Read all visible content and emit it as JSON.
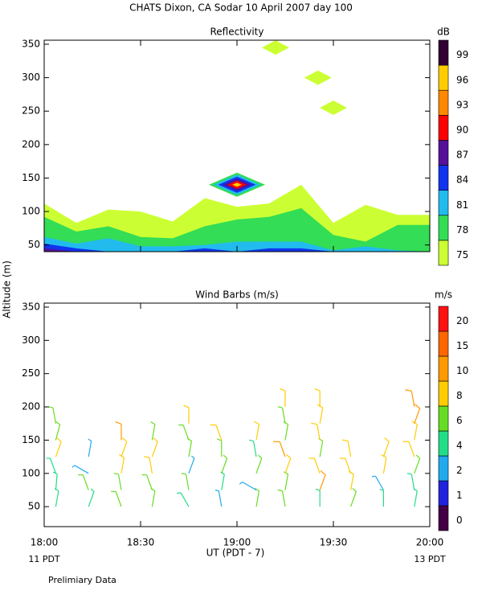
{
  "title": "CHATS Dixon, CA  Sodar  10 April 2007  day 100",
  "y_label": "Altitude (m)",
  "x_label": "UT  (PDT - 7)",
  "x_left_note": "11 PDT",
  "x_right_note": "13 PDT",
  "footnote": "Prelimiary Data",
  "chart_data": [
    {
      "type": "contour",
      "title": "Reflectivity",
      "xlim": [
        18,
        20
      ],
      "xticks": [
        18,
        18.5,
        19,
        19.5,
        20
      ],
      "ylim": [
        40,
        356
      ],
      "yticks": [
        50,
        100,
        150,
        200,
        250,
        300,
        350
      ],
      "x": [
        18,
        18.1667,
        18.3333,
        18.5,
        18.6667,
        18.8333,
        19,
        19.1667,
        19.3333,
        19.5,
        19.6667,
        19.8333,
        20
      ],
      "series": [
        {
          "color": "#ccff33",
          "values": [
            112,
            83,
            103,
            100,
            85,
            120,
            107,
            112,
            140,
            83,
            110,
            95,
            95
          ]
        },
        {
          "color": "#33dd55",
          "values": [
            92,
            70,
            78,
            62,
            60,
            78,
            88,
            92,
            105,
            65,
            55,
            80,
            80
          ]
        },
        {
          "color": "#22bbee",
          "values": [
            62,
            52,
            60,
            48,
            48,
            50,
            55,
            55,
            55,
            42,
            48,
            42,
            40
          ]
        },
        {
          "color": "#1133ee",
          "values": [
            52,
            45,
            40,
            40,
            40,
            45,
            40,
            45,
            45,
            40,
            40,
            40,
            40
          ]
        },
        {
          "color": "#551199",
          "values": [
            45,
            40,
            40,
            40,
            40,
            40,
            40,
            40,
            40,
            40,
            40,
            40,
            40
          ]
        }
      ],
      "spots": [
        {
          "x": 19,
          "y": 140,
          "colors": [
            "#33dd55",
            "#22bbee",
            "#1133ee",
            "#551199",
            "#ff0000",
            "#ffcc00"
          ]
        },
        {
          "x": 19.2,
          "y": 345,
          "colors": [
            "#ccff33"
          ]
        },
        {
          "x": 19.42,
          "y": 300,
          "colors": [
            "#ccff33"
          ]
        },
        {
          "x": 19.5,
          "y": 255,
          "colors": [
            "#ccff33"
          ]
        }
      ],
      "colorbar": {
        "label": "dB",
        "ticks": [
          75,
          78,
          81,
          84,
          87,
          90,
          93,
          96,
          99
        ],
        "colors": [
          "#ccff33",
          "#33dd55",
          "#22bbee",
          "#1133ee",
          "#551199",
          "#ff0000",
          "#ff8800",
          "#ffcc00",
          "#330033"
        ]
      }
    },
    {
      "type": "barbs",
      "title": "Wind Barbs (m/s)",
      "xlim": [
        18,
        20
      ],
      "xticks": [
        {
          "value": 18,
          "label": "18:00"
        },
        {
          "value": 18.5,
          "label": "18:30"
        },
        {
          "value": 19,
          "label": "19:00"
        },
        {
          "value": 19.5,
          "label": "19:30"
        },
        {
          "value": 20,
          "label": "20:00"
        }
      ],
      "ylim": [
        20,
        356
      ],
      "yticks": [
        50,
        100,
        150,
        200,
        250,
        300,
        350
      ],
      "barbs": {
        "x": [
          18.06,
          18.06,
          18.06,
          18.06,
          18.06,
          18.06,
          18.23,
          18.23,
          18.23,
          18.23,
          18.4,
          18.4,
          18.4,
          18.4,
          18.4,
          18.56,
          18.56,
          18.56,
          18.56,
          18.56,
          18.75,
          18.75,
          18.75,
          18.75,
          18.75,
          18.75,
          18.92,
          18.92,
          18.92,
          18.92,
          18.92,
          19.1,
          19.1,
          19.1,
          19.1,
          19.1,
          19.25,
          19.25,
          19.25,
          19.25,
          19.25,
          19.25,
          19.25,
          19.43,
          19.43,
          19.43,
          19.43,
          19.43,
          19.43,
          19.43,
          19.59,
          19.59,
          19.59,
          19.59,
          19.76,
          19.76,
          19.76,
          19.76,
          19.92,
          19.92,
          19.92,
          19.92,
          19.92,
          19.92,
          19.92
        ],
        "y": [
          50,
          75,
          100,
          125,
          150,
          175,
          50,
          75,
          100,
          125,
          50,
          75,
          100,
          125,
          150,
          50,
          75,
          100,
          125,
          150,
          50,
          75,
          100,
          125,
          150,
          175,
          50,
          75,
          100,
          125,
          150,
          50,
          75,
          100,
          125,
          150,
          50,
          75,
          100,
          125,
          150,
          175,
          200,
          50,
          75,
          100,
          125,
          150,
          175,
          200,
          50,
          75,
          100,
          125,
          50,
          75,
          100,
          125,
          50,
          75,
          100,
          125,
          150,
          175,
          200
        ],
        "speed": [
          5,
          5,
          4,
          8,
          6,
          6,
          4,
          6,
          2,
          3,
          6,
          6,
          8,
          8,
          10,
          6,
          6,
          8,
          8,
          6,
          4,
          6,
          3,
          6,
          6,
          8,
          3,
          5,
          6,
          6,
          9,
          6,
          3,
          6,
          5,
          8,
          6,
          6,
          8,
          10,
          7,
          6,
          8,
          5,
          10,
          8,
          6,
          9,
          9,
          8,
          6,
          8,
          8,
          8,
          4,
          3,
          8,
          9,
          4,
          5,
          6,
          9,
          9,
          12,
          10
        ],
        "direction": [
          10,
          5,
          340,
          20,
          15,
          350,
          20,
          340,
          300,
          10,
          340,
          350,
          10,
          20,
          0,
          10,
          340,
          350,
          20,
          10,
          330,
          350,
          20,
          10,
          340,
          0,
          350,
          10,
          20,
          0,
          340,
          10,
          300,
          20,
          350,
          10,
          350,
          10,
          20,
          340,
          10,
          350,
          0,
          0,
          20,
          340,
          10,
          350,
          10,
          0,
          20,
          10,
          340,
          350,
          0,
          330,
          10,
          20,
          10,
          350,
          20,
          340,
          10,
          20,
          350
        ]
      },
      "colorbar": {
        "label": "m/s",
        "ticks": [
          0,
          1,
          2,
          4,
          6,
          8,
          10,
          15,
          20
        ],
        "colors": [
          "#440044",
          "#2222dd",
          "#22aaee",
          "#22dd88",
          "#66dd22",
          "#ffcc00",
          "#ff9900",
          "#ff6600",
          "#ff1111"
        ]
      }
    }
  ]
}
